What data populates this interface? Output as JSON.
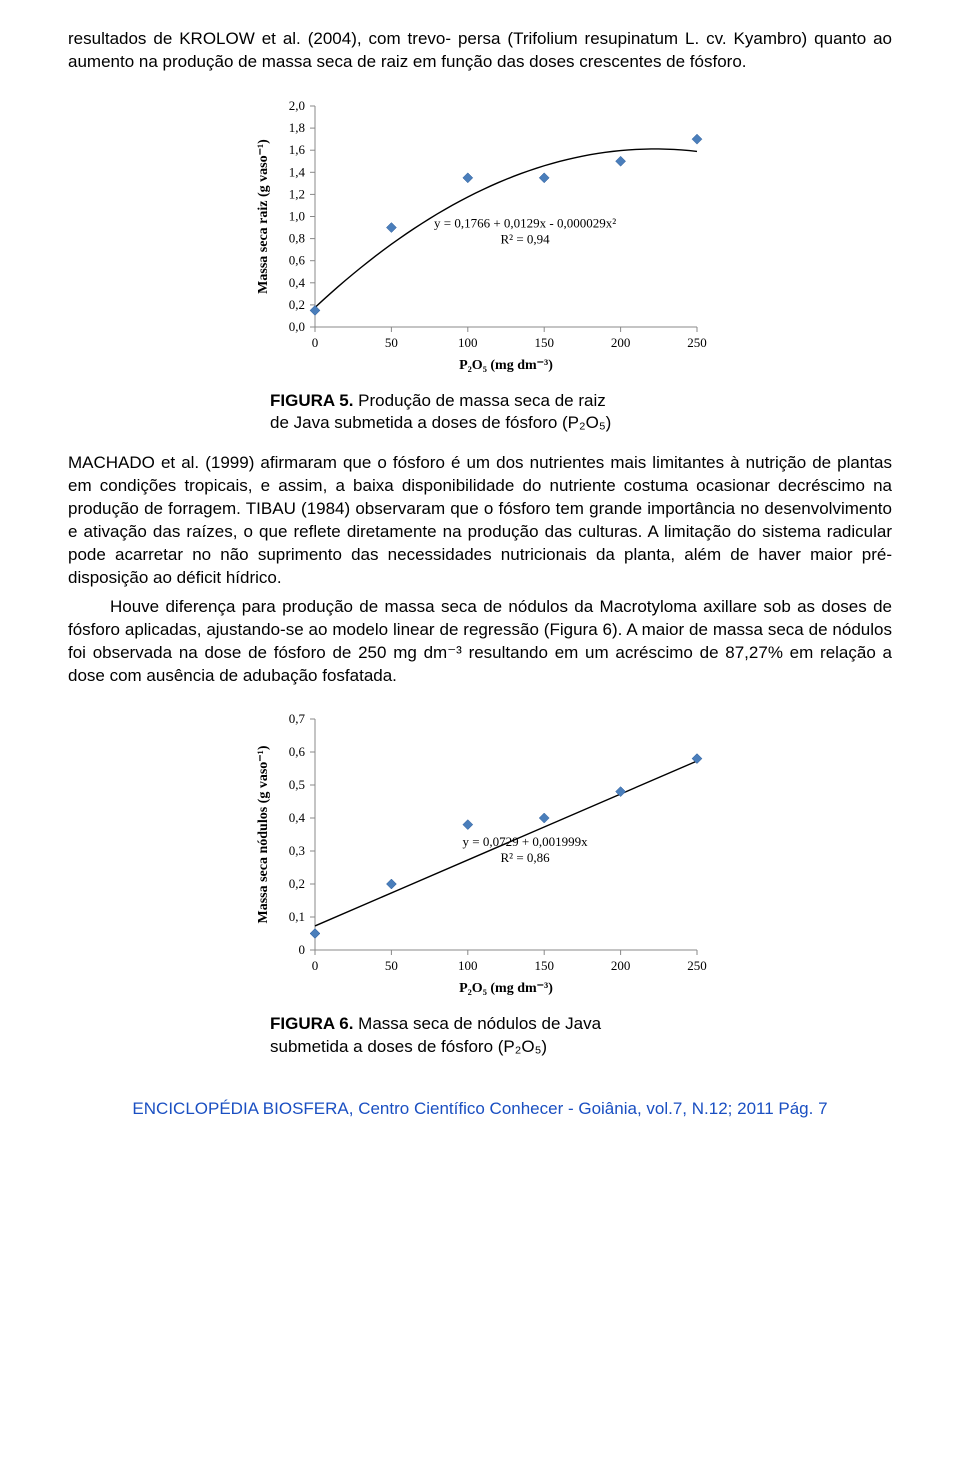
{
  "intro": "resultados de KROLOW et al. (2004), com trevo- persa (Trifolium resupinatum L. cv. Kyambro) quanto ao aumento na produção de massa seca de raiz em função das doses crescentes de fósforo.",
  "fig5": {
    "type": "scatter",
    "label": "FIGURA 5.",
    "caption_a": "Produção de massa seca de raiz",
    "caption_b": "de Java submetida a doses de fósforo (P₂O₅)",
    "xlabel": "P₂O₅ (mg dm⁻³)",
    "ylabel": "Massa seca raiz (g vaso⁻¹)",
    "xticks": [
      0,
      50,
      100,
      150,
      200,
      250
    ],
    "yticks": [
      "0,0",
      "0,2",
      "0,4",
      "0,6",
      "0,8",
      "1,0",
      "1,2",
      "1,4",
      "1,6",
      "1,8",
      "2,0"
    ],
    "yvals": [
      0.0,
      0.2,
      0.4,
      0.6,
      0.8,
      1.0,
      1.2,
      1.4,
      1.6,
      1.8,
      2.0
    ],
    "data_x": [
      0,
      50,
      100,
      150,
      200,
      250
    ],
    "data_y": [
      0.15,
      0.9,
      1.35,
      1.35,
      1.5,
      1.7
    ],
    "marker_color": "#4a7ebb",
    "eq1": "y = 0,1766 + 0,0129x - 0,000029x²",
    "eq2": "R² = 0,94",
    "curve": {
      "a": 0.1766,
      "b": 0.0129,
      "c": -2.9e-05
    }
  },
  "mid_para": "MACHADO et al. (1999) afirmaram que o fósforo é um dos nutrientes mais limitantes à nutrição de plantas em condições tropicais, e assim, a baixa disponibilidade do nutriente costuma ocasionar decréscimo na produção de forragem. TIBAU (1984) observaram que o fósforo tem grande importância no desenvolvimento e ativação das raízes, o que reflete diretamente na produção das culturas. A limitação do sistema radicular pode acarretar no não suprimento das necessidades nutricionais da planta, além de haver maior pré-disposição ao déficit hídrico.",
  "p2": "Houve diferença para produção de massa seca de nódulos da Macrotyloma axillare sob as doses de fósforo aplicadas, ajustando-se ao modelo linear de regressão (Figura 6). A maior de massa seca de nódulos foi observada na dose de fósforo de 250 mg dm⁻³ resultando em um acréscimo de 87,27% em relação a dose com ausência de adubação fosfatada.",
  "fig6": {
    "type": "scatter",
    "label": "FIGURA 6.",
    "caption_a": "Massa seca de nódulos de Java",
    "caption_b": "submetida a doses de fósforo (P₂O₅)",
    "xlabel": "P₂O₅ (mg dm⁻³)",
    "ylabel": "Massa seca nódulos (g vaso⁻¹)",
    "xticks": [
      0,
      50,
      100,
      150,
      200,
      250
    ],
    "yticks": [
      "0",
      "0,1",
      "0,2",
      "0,3",
      "0,4",
      "0,5",
      "0,6",
      "0,7"
    ],
    "yvals": [
      0,
      0.1,
      0.2,
      0.3,
      0.4,
      0.5,
      0.6,
      0.7
    ],
    "data_x": [
      0,
      50,
      100,
      150,
      200,
      250
    ],
    "data_y": [
      0.05,
      0.2,
      0.38,
      0.4,
      0.48,
      0.58
    ],
    "marker_color": "#4a7ebb",
    "eq1": "y = 0,0729 + 0,001999x",
    "eq2": "R² = 0,86",
    "line": {
      "a": 0.0729,
      "b": 0.001999
    }
  },
  "footer_left": "ENCICLOPÉDIA BIOSFERA, Centro Científico Conhecer - Goiânia, vol.7, N.12; 2011 Pág.",
  "footer_page": "7"
}
